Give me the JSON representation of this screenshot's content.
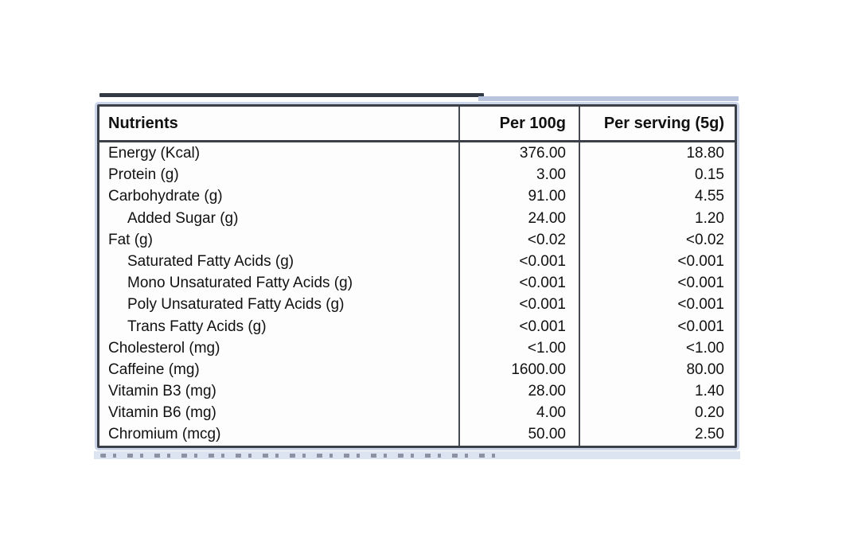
{
  "table": {
    "columns": [
      "Nutrients",
      "Per 100g",
      "Per serving (5g)"
    ],
    "rows": [
      {
        "label": "Energy (Kcal)",
        "per_100g": "376.00",
        "per_serving": "18.80"
      },
      {
        "label": "Protein (g)",
        "per_100g": "3.00",
        "per_serving": "0.15"
      },
      {
        "label": "Carbohydrate (g)",
        "per_100g": "91.00",
        "per_serving": "4.55"
      },
      {
        "label": "Added Sugar (g)",
        "per_100g": "24.00",
        "per_serving": "1.20"
      },
      {
        "label": "Fat (g)",
        "per_100g": "<0.02",
        "per_serving": "<0.02"
      },
      {
        "label": "Saturated Fatty Acids (g)",
        "per_100g": "<0.001",
        "per_serving": "<0.001"
      },
      {
        "label": "Mono Unsaturated Fatty Acids (g)",
        "per_100g": "<0.001",
        "per_serving": "<0.001"
      },
      {
        "label": "Poly Unsaturated Fatty Acids (g)",
        "per_100g": "<0.001",
        "per_serving": "<0.001"
      },
      {
        "label": "Trans Fatty Acids (g)",
        "per_100g": "<0.001",
        "per_serving": "<0.001"
      },
      {
        "label": "Cholesterol (mg)",
        "per_100g": "<1.00",
        "per_serving": "<1.00"
      },
      {
        "label": "Caffeine (mg)",
        "per_100g": "1600.00",
        "per_serving": "80.00"
      },
      {
        "label": "Vitamin B3 (mg)",
        "per_100g": "28.00",
        "per_serving": "1.40"
      },
      {
        "label": "Vitamin B6 (mg)",
        "per_100g": "4.00",
        "per_serving": "0.20"
      },
      {
        "label": "Chromium (mcg)",
        "per_100g": "50.00",
        "per_serving": "2.50"
      }
    ]
  },
  "colors": {
    "table_border": "#3b4048",
    "accent_blue": "#c3cfe8",
    "text": "#111111",
    "background": "#ffffff"
  }
}
